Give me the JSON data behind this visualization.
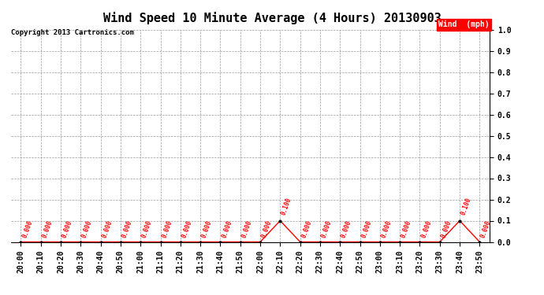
{
  "title": "Wind Speed 10 Minute Average (4 Hours) 20130903",
  "copyright": "Copyright 2013 Cartronics.com",
  "legend_label": "Wind  (mph)",
  "legend_bg": "#ff0000",
  "legend_fg": "#ffffff",
  "x_labels": [
    "20:00",
    "20:10",
    "20:20",
    "20:30",
    "20:40",
    "20:50",
    "21:00",
    "21:10",
    "21:20",
    "21:30",
    "21:40",
    "21:50",
    "22:00",
    "22:10",
    "22:20",
    "22:30",
    "22:40",
    "22:50",
    "23:00",
    "23:10",
    "23:20",
    "23:30",
    "23:40",
    "23:50"
  ],
  "y_values": [
    0.0,
    0.0,
    0.0,
    0.0,
    0.0,
    0.0,
    0.0,
    0.0,
    0.0,
    0.0,
    0.0,
    0.0,
    0.0,
    0.1,
    0.0,
    0.0,
    0.0,
    0.0,
    0.0,
    0.0,
    0.0,
    0.0,
    0.1,
    0.0
  ],
  "line_color": "#ff0000",
  "marker_color": "#000000",
  "annotation_color": "#ff0000",
  "ylim": [
    0.0,
    1.0
  ],
  "yticks": [
    0.0,
    0.1,
    0.2,
    0.3,
    0.4,
    0.5,
    0.6,
    0.7,
    0.8,
    0.9,
    1.0
  ],
  "background_color": "#ffffff",
  "grid_color": "#999999",
  "title_fontsize": 11,
  "axis_fontsize": 7,
  "copyright_fontsize": 6.5,
  "annot_fontsize": 5.5,
  "legend_fontsize": 7
}
